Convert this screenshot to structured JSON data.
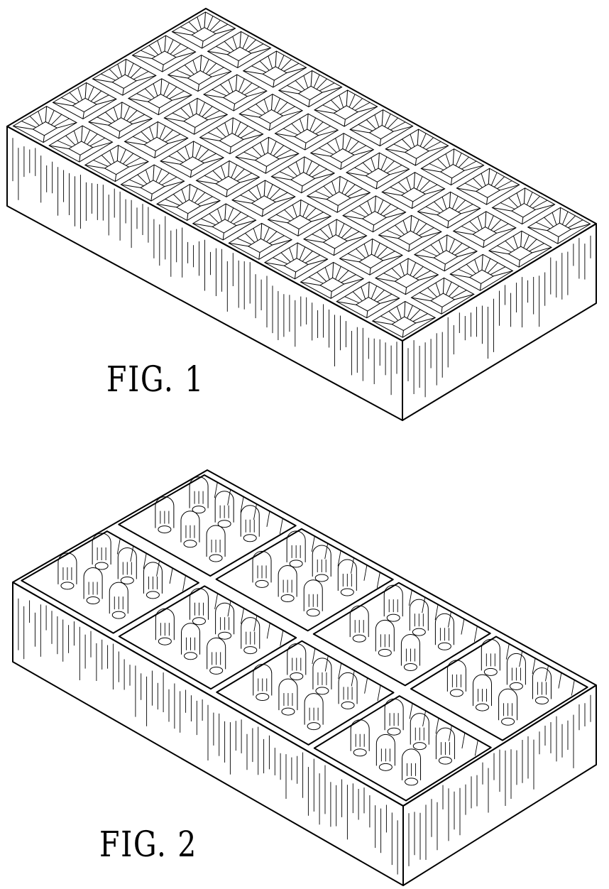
{
  "sheet": {
    "figures": [
      {
        "id": "fig1",
        "label": "FIG. 1",
        "subject": "tray-with-many-square-cells"
      },
      {
        "id": "fig2",
        "label": "FIG. 2",
        "subject": "tray-with-eight-compartments-of-domed-cups"
      }
    ]
  },
  "style": {
    "line_color": "#000000",
    "background": "#ffffff"
  }
}
